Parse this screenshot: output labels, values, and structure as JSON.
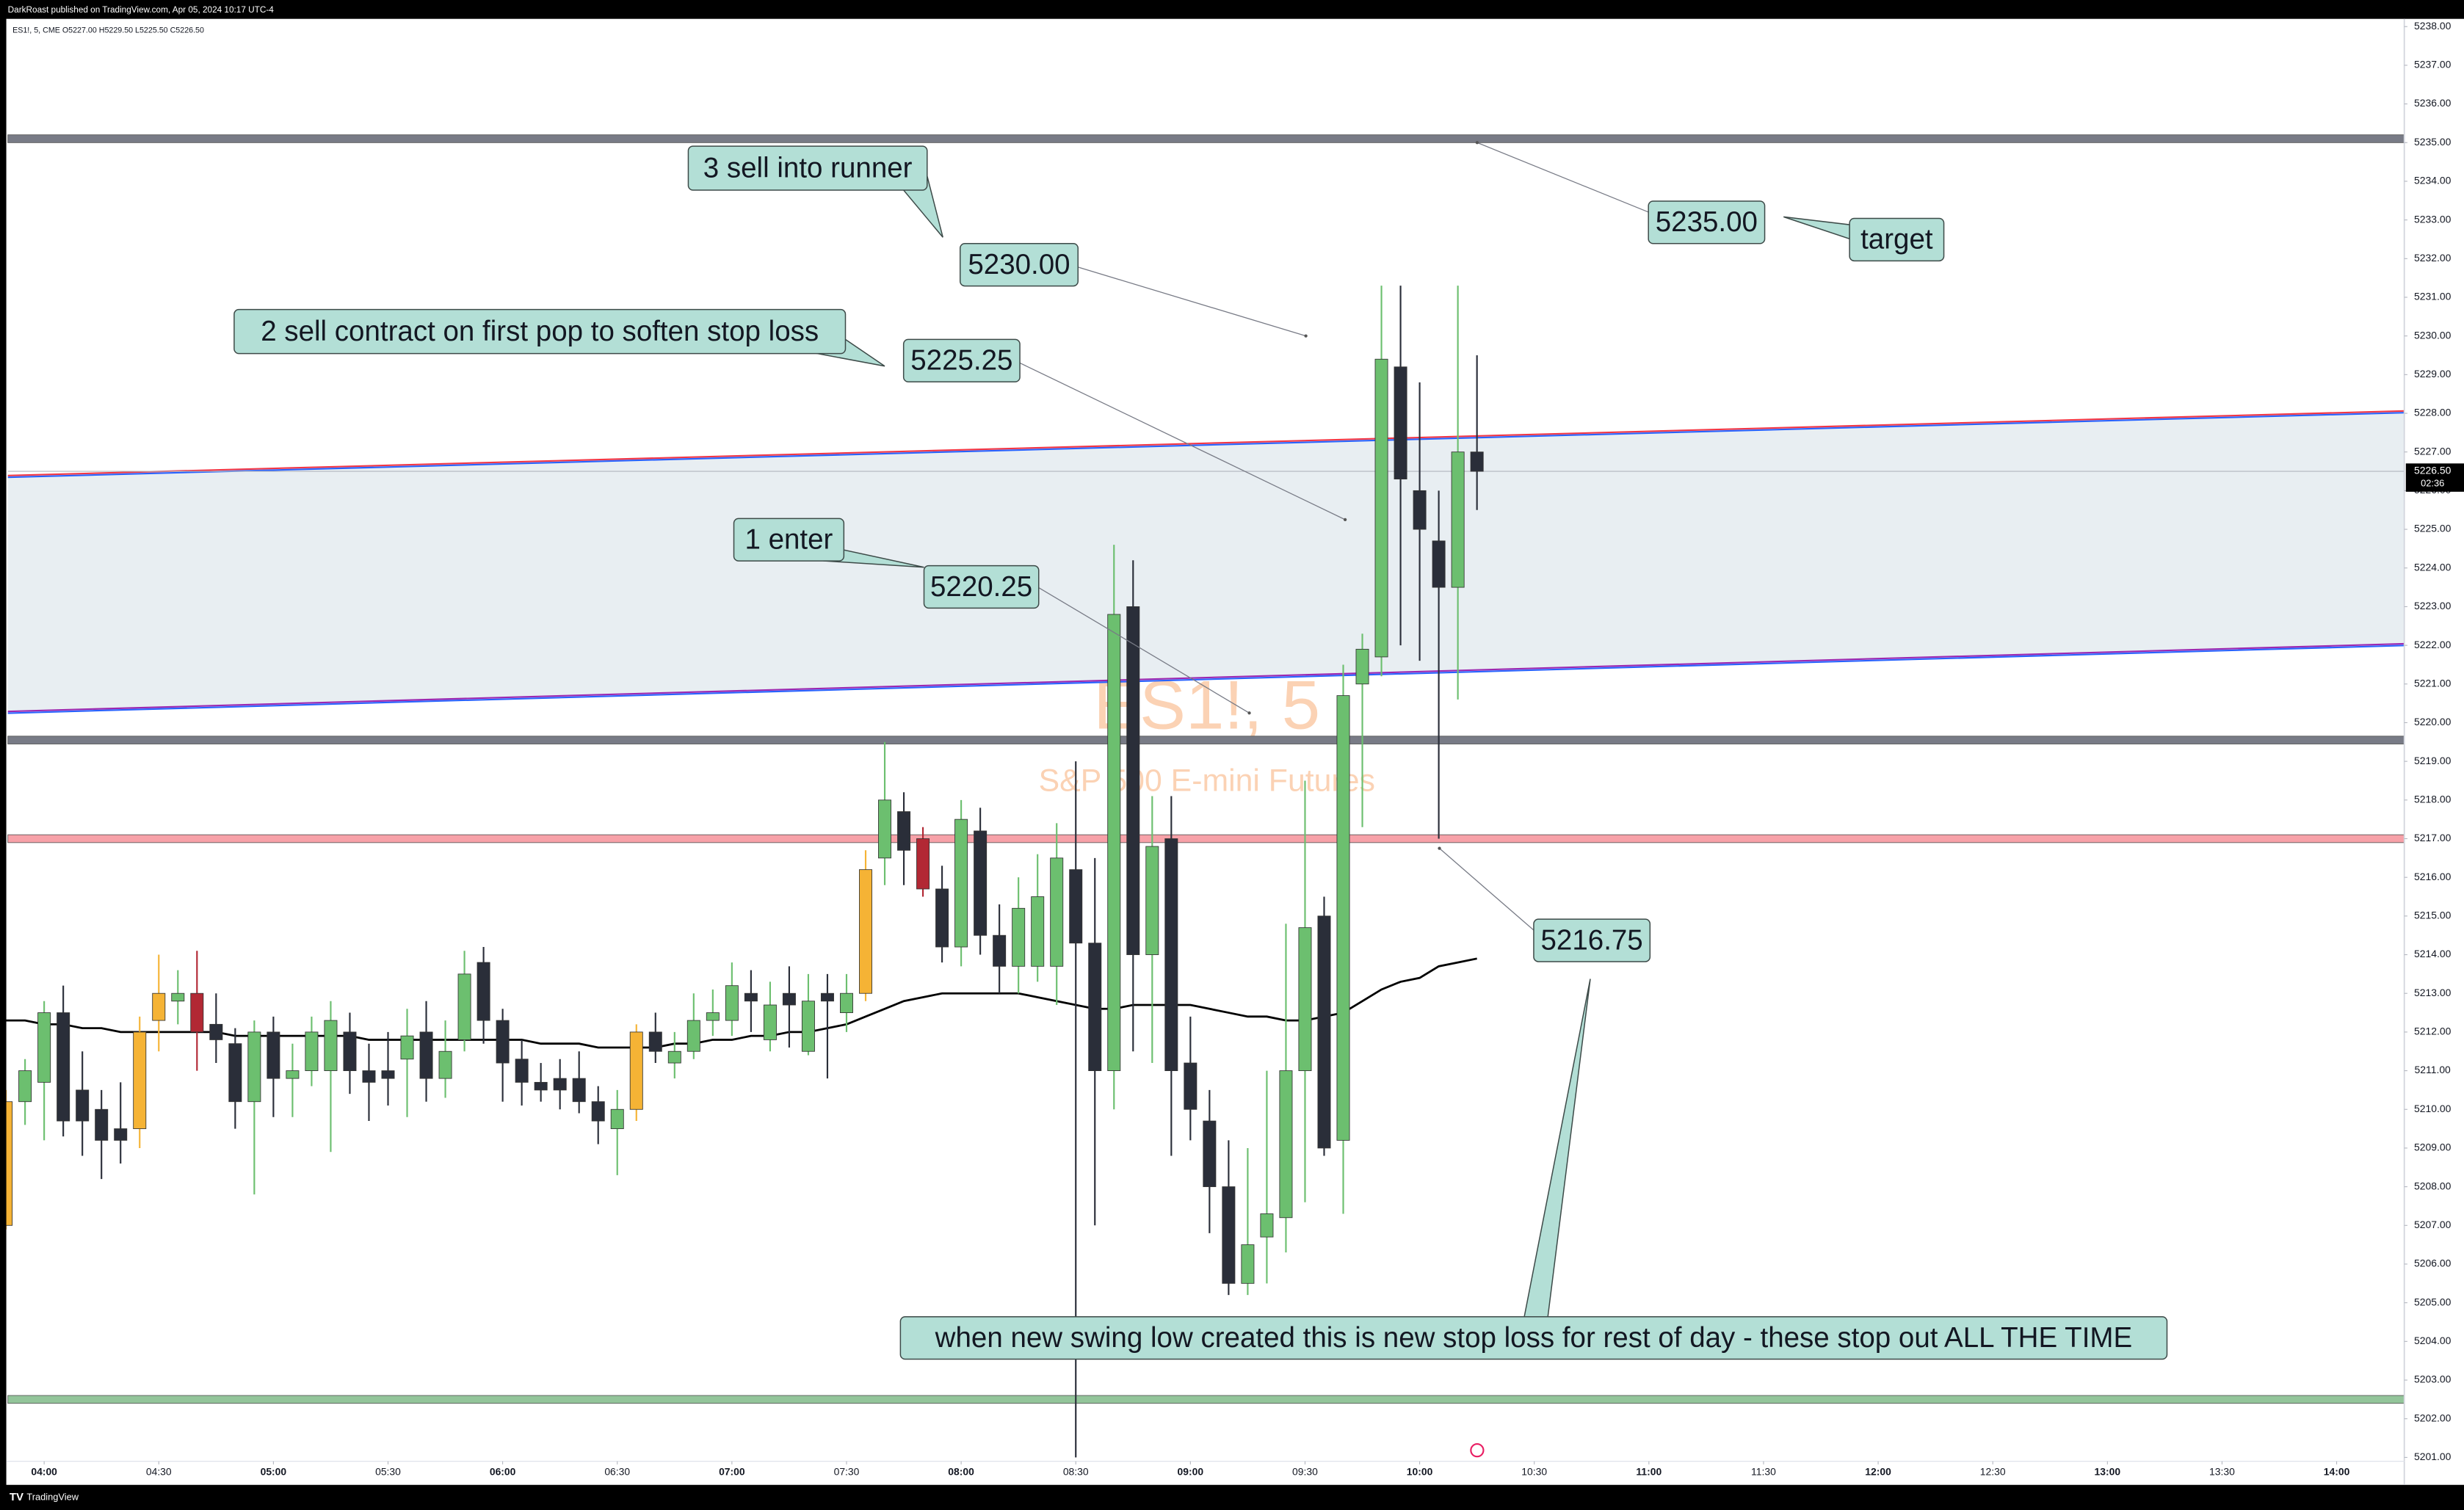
{
  "header": {
    "publisher": "DarkRoast published on TradingView.com, Apr 05, 2024 10:17 UTC-4",
    "symbol_line": "ES1!, 5, CME  O5227.00  H5229.50  L5225.50  C5226.50",
    "brand": "TradingView"
  },
  "chart_data": {
    "type": "candlestick",
    "watermark": {
      "symbol": "ES1!, 5",
      "description": "S&P 500 E-mini Futures",
      "color": "#fbd2b4"
    },
    "x": [
      230,
      235,
      240,
      245,
      250,
      255,
      260,
      265,
      270,
      275,
      280,
      285,
      290,
      295,
      300,
      305,
      310,
      315,
      320,
      325,
      330,
      335,
      340,
      345,
      350,
      355,
      360,
      365,
      370,
      375,
      380,
      385,
      390,
      395,
      400,
      405,
      410,
      415,
      420,
      425,
      430,
      435,
      440,
      445,
      450,
      455,
      460,
      465,
      470,
      475,
      480,
      485,
      490,
      495,
      500,
      505,
      510,
      515,
      520,
      525,
      530,
      535,
      540,
      545,
      550,
      555,
      560,
      565,
      570,
      575,
      580,
      585,
      590,
      595,
      600,
      605,
      610,
      615
    ],
    "open": [
      5207,
      5210.2,
      5210.7,
      5212.5,
      5210.5,
      5210,
      5209.5,
      5209.5,
      5212.3,
      5212.8,
      5213,
      5212.2,
      5211.7,
      5210.2,
      5212,
      5210.8,
      5211,
      5211,
      5212,
      5211,
      5211,
      5211.3,
      5212,
      5210.8,
      5211.8,
      5213.8,
      5212.3,
      5211.3,
      5210.7,
      5210.8,
      5210.8,
      5210.2,
      5209.5,
      5210,
      5212,
      5211.2,
      5211.5,
      5212.3,
      5212.3,
      5213,
      5211.8,
      5213,
      5211.5,
      5213,
      5212.5,
      5213,
      5216.5,
      5217.7,
      5217,
      5215.7,
      5214.2,
      5217.2,
      5214.5,
      5213.7,
      5213.7,
      5213.7,
      5216.2,
      5214.3,
      5211,
      5223,
      5214,
      5217,
      5211.2,
      5209.7,
      5208,
      5205.5,
      5206.7,
      5207.2,
      5211,
      5215,
      5209.2,
      5221,
      5221.7,
      5229.2,
      5226,
      5224.7,
      5223.5,
      5227
    ],
    "high": [
      5210.5,
      5211.3,
      5212.8,
      5213.2,
      5211.5,
      5210.5,
      5210.7,
      5212.4,
      5214,
      5213.6,
      5214.1,
      5213,
      5212.1,
      5212.3,
      5212.4,
      5211.7,
      5212.4,
      5212.8,
      5212.5,
      5211.7,
      5212,
      5212.6,
      5212.8,
      5212.3,
      5214.1,
      5214.2,
      5212.6,
      5211.8,
      5211.2,
      5211.3,
      5211.5,
      5210.6,
      5210.5,
      5212.2,
      5212.5,
      5212,
      5213,
      5213.1,
      5213.8,
      5213.6,
      5213.3,
      5213.7,
      5213.5,
      5213.5,
      5213.5,
      5216.7,
      5219.5,
      5218.2,
      5217.3,
      5216.3,
      5218,
      5217.8,
      5215.3,
      5216,
      5216.6,
      5217.4,
      5219,
      5216.5,
      5224.6,
      5224.2,
      5218.1,
      5218.1,
      5212.4,
      5210.5,
      5209.2,
      5209,
      5211,
      5214.8,
      5218.5,
      5215.5,
      5221.5,
      5222.3,
      5231.3,
      5231.3,
      5228.8,
      5226,
      5231.3,
      5229.5
    ],
    "low": [
      5206.9,
      5209.6,
      5209.2,
      5209.3,
      5208.8,
      5208.2,
      5208.6,
      5209,
      5211.5,
      5212.2,
      5211,
      5211.2,
      5209.5,
      5207.8,
      5209.8,
      5209.8,
      5210.6,
      5208.9,
      5210.4,
      5209.7,
      5210.1,
      5209.8,
      5210.2,
      5210.3,
      5211.5,
      5211.7,
      5210.2,
      5210.1,
      5210.2,
      5210,
      5209.9,
      5209.1,
      5208.3,
      5209.7,
      5211.2,
      5210.8,
      5211.3,
      5211.9,
      5211.9,
      5212,
      5211.5,
      5211.6,
      5211.4,
      5210.8,
      5212,
      5212.8,
      5215.8,
      5215.8,
      5215.5,
      5213.8,
      5213.7,
      5214,
      5213,
      5213,
      5213.3,
      5212.7,
      5201,
      5207,
      5210,
      5211.5,
      5211.2,
      5208.8,
      5209.2,
      5206.8,
      5205.2,
      5205.2,
      5205.5,
      5206.3,
      5207.6,
      5208.8,
      5207.3,
      5217.3,
      5221.2,
      5222,
      5221.6,
      5217,
      5220.6,
      5225.5
    ],
    "close": [
      5210.2,
      5211,
      5212.5,
      5209.7,
      5209.7,
      5209.2,
      5209.2,
      5212,
      5213,
      5213,
      5212,
      5211.8,
      5210.2,
      5212,
      5210.8,
      5211,
      5212,
      5212.3,
      5211,
      5210.7,
      5210.8,
      5211.9,
      5210.8,
      5211.5,
      5213.5,
      5212.3,
      5211.2,
      5210.7,
      5210.5,
      5210.5,
      5210.2,
      5209.7,
      5210,
      5212,
      5211.5,
      5211.5,
      5212.3,
      5212.5,
      5213.2,
      5212.8,
      5212.7,
      5212.7,
      5212.8,
      5212.8,
      5213,
      5216.2,
      5218,
      5216.7,
      5215.7,
      5214.2,
      5217.5,
      5214.5,
      5213.7,
      5215.2,
      5215.5,
      5216.5,
      5214.3,
      5211,
      5222.8,
      5214,
      5216.8,
      5211,
      5210,
      5208,
      5205.5,
      5206.5,
      5207.3,
      5211,
      5214.7,
      5209,
      5220.7,
      5221.9,
      5229.4,
      5226.3,
      5225,
      5223.5,
      5227,
      5226.5
    ],
    "colors": [
      "#f5b335",
      "#6cbf6f",
      "#6cbf6f",
      "#2a2e39",
      "#2a2e39",
      "#2a2e39",
      "#2a2e39",
      "#f5b335",
      "#f5b335",
      "#6cbf6f",
      "#b22834",
      "#2a2e39",
      "#2a2e39",
      "#6cbf6f",
      "#2a2e39",
      "#6cbf6f",
      "#6cbf6f",
      "#6cbf6f",
      "#2a2e39",
      "#2a2e39",
      "#2a2e39",
      "#6cbf6f",
      "#2a2e39",
      "#6cbf6f",
      "#6cbf6f",
      "#2a2e39",
      "#2a2e39",
      "#2a2e39",
      "#2a2e39",
      "#2a2e39",
      "#2a2e39",
      "#2a2e39",
      "#6cbf6f",
      "#f5b335",
      "#2a2e39",
      "#6cbf6f",
      "#6cbf6f",
      "#6cbf6f",
      "#6cbf6f",
      "#2a2e39",
      "#6cbf6f",
      "#2a2e39",
      "#6cbf6f",
      "#2a2e39",
      "#6cbf6f",
      "#f5b335",
      "#6cbf6f",
      "#2a2e39",
      "#b22834",
      "#2a2e39",
      "#6cbf6f",
      "#2a2e39",
      "#2a2e39",
      "#6cbf6f",
      "#6cbf6f",
      "#6cbf6f",
      "#2a2e39",
      "#2a2e39",
      "#6cbf6f",
      "#2a2e39",
      "#6cbf6f",
      "#2a2e39",
      "#2a2e39",
      "#2a2e39",
      "#2a2e39",
      "#6cbf6f",
      "#6cbf6f",
      "#6cbf6f",
      "#6cbf6f",
      "#2a2e39",
      "#6cbf6f",
      "#6cbf6f",
      "#6cbf6f",
      "#2a2e39",
      "#2a2e39",
      "#2a2e39",
      "#6cbf6f",
      "#2a2e39"
    ],
    "ma": {
      "color": "#000000",
      "values": [
        5212.3,
        5212.3,
        5212.2,
        5212.2,
        5212.1,
        5212.1,
        5212.0,
        5212.0,
        5212.0,
        5212.0,
        5212.0,
        5212.0,
        5211.9,
        5211.9,
        5211.9,
        5211.9,
        5211.9,
        5211.9,
        5211.9,
        5211.8,
        5211.8,
        5211.8,
        5211.8,
        5211.8,
        5211.8,
        5211.8,
        5211.8,
        5211.8,
        5211.7,
        5211.7,
        5211.7,
        5211.6,
        5211.6,
        5211.6,
        5211.6,
        5211.7,
        5211.7,
        5211.8,
        5211.8,
        5211.9,
        5211.9,
        5212.0,
        5212.0,
        5212.1,
        5212.2,
        5212.4,
        5212.6,
        5212.8,
        5212.9,
        5213.0,
        5213.0,
        5213.0,
        5213.0,
        5213.0,
        5212.9,
        5212.8,
        5212.7,
        5212.6,
        5212.6,
        5212.7,
        5212.7,
        5212.7,
        5212.7,
        5212.6,
        5212.5,
        5212.4,
        5212.4,
        5212.3,
        5212.3,
        5212.4,
        5212.5,
        5212.8,
        5213.1,
        5213.3,
        5213.4,
        5213.7,
        5213.8,
        5213.9
      ]
    },
    "levels": [
      {
        "value": 5235.1,
        "color": "#787b86"
      },
      {
        "value": 5219.55,
        "color": "#787b86"
      },
      {
        "value": 5217.0,
        "color": "#f7a1a8"
      },
      {
        "value": 5202.5,
        "color": "#93c59a"
      }
    ],
    "channel": {
      "fill": "#e8eef2",
      "upper": {
        "values": [
          5226.37,
          5228.04
        ],
        "colors": [
          "#f23645",
          "#2962ff"
        ]
      },
      "lower": {
        "values": [
          5220.27,
          5222.02
        ],
        "colors": [
          "#9c27b0",
          "#2962ff"
        ]
      }
    },
    "last_price": {
      "value": 5226.5,
      "label": "5226.50"
    },
    "countdown": "02:36",
    "annotations": [
      {
        "text": "3 sell into runner"
      },
      {
        "text": "2 sell contract on first pop to soften stop loss"
      },
      {
        "text": "1 enter"
      },
      {
        "text": "target"
      },
      {
        "text": "when new swing low created this is new stop loss for rest of day - these stop out ALL THE TIME"
      }
    ],
    "price_labels": [
      {
        "value": 5230,
        "label": "5230.00"
      },
      {
        "value": 5225.25,
        "label": "5225.25"
      },
      {
        "value": 5220.25,
        "label": "5220.25"
      },
      {
        "value": 5235,
        "label": "5235.00"
      },
      {
        "value": 5216.75,
        "label": "5216.75"
      }
    ],
    "xlim": [
      230.5,
      857.7
    ],
    "xticks": [
      {
        "value": 240,
        "label": "04:00"
      },
      {
        "value": 270,
        "label": "04:30"
      },
      {
        "value": 300,
        "label": "05:00"
      },
      {
        "value": 330,
        "label": "05:30"
      },
      {
        "value": 360,
        "label": "06:00"
      },
      {
        "value": 390,
        "label": "06:30"
      },
      {
        "value": 420,
        "label": "07:00"
      },
      {
        "value": 450,
        "label": "07:30"
      },
      {
        "value": 480,
        "label": "08:00"
      },
      {
        "value": 510,
        "label": "08:30"
      },
      {
        "value": 540,
        "label": "09:00"
      },
      {
        "value": 570,
        "label": "09:30"
      },
      {
        "value": 600,
        "label": "10:00"
      },
      {
        "value": 630,
        "label": "10:30"
      },
      {
        "value": 660,
        "label": "11:00"
      },
      {
        "value": 690,
        "label": "11:30"
      },
      {
        "value": 720,
        "label": "12:00"
      },
      {
        "value": 750,
        "label": "12:30"
      },
      {
        "value": 780,
        "label": "13:00"
      },
      {
        "value": 810,
        "label": "13:30"
      },
      {
        "value": 840,
        "label": "14:00"
      }
    ],
    "ylim": [
      5200.9,
      5238.2
    ],
    "yticks": [
      {
        "value": 5201,
        "label": "5201.00"
      },
      {
        "value": 5202,
        "label": "5202.00"
      },
      {
        "value": 5203,
        "label": "5203.00"
      },
      {
        "value": 5204,
        "label": "5204.00"
      },
      {
        "value": 5205,
        "label": "5205.00"
      },
      {
        "value": 5206,
        "label": "5206.00"
      },
      {
        "value": 5207,
        "label": "5207.00"
      },
      {
        "value": 5208,
        "label": "5208.00"
      },
      {
        "value": 5209,
        "label": "5209.00"
      },
      {
        "value": 5210,
        "label": "5210.00"
      },
      {
        "value": 5211,
        "label": "5211.00"
      },
      {
        "value": 5212,
        "label": "5212.00"
      },
      {
        "value": 5213,
        "label": "5213.00"
      },
      {
        "value": 5214,
        "label": "5214.00"
      },
      {
        "value": 5215,
        "label": "5215.00"
      },
      {
        "value": 5216,
        "label": "5216.00"
      },
      {
        "value": 5217,
        "label": "5217.00"
      },
      {
        "value": 5218,
        "label": "5218.00"
      },
      {
        "value": 5219,
        "label": "5219.00"
      },
      {
        "value": 5220,
        "label": "5220.00"
      },
      {
        "value": 5221,
        "label": "5221.00"
      },
      {
        "value": 5222,
        "label": "5222.00"
      },
      {
        "value": 5223,
        "label": "5223.00"
      },
      {
        "value": 5224,
        "label": "5224.00"
      },
      {
        "value": 5225,
        "label": "5225.00"
      },
      {
        "value": 5226,
        "label": "5226.00"
      },
      {
        "value": 5227,
        "label": "5227.00"
      },
      {
        "value": 5228,
        "label": "5228.00"
      },
      {
        "value": 5229,
        "label": "5229.00"
      },
      {
        "value": 5230,
        "label": "5230.00"
      },
      {
        "value": 5231,
        "label": "5231.00"
      },
      {
        "value": 5232,
        "label": "5232.00"
      },
      {
        "value": 5233,
        "label": "5233.00"
      },
      {
        "value": 5234,
        "label": "5234.00"
      },
      {
        "value": 5235,
        "label": "5235.00"
      },
      {
        "value": 5236,
        "label": "5236.00"
      },
      {
        "value": 5237,
        "label": "5237.00"
      },
      {
        "value": 5238,
        "label": "5238.00"
      }
    ]
  }
}
